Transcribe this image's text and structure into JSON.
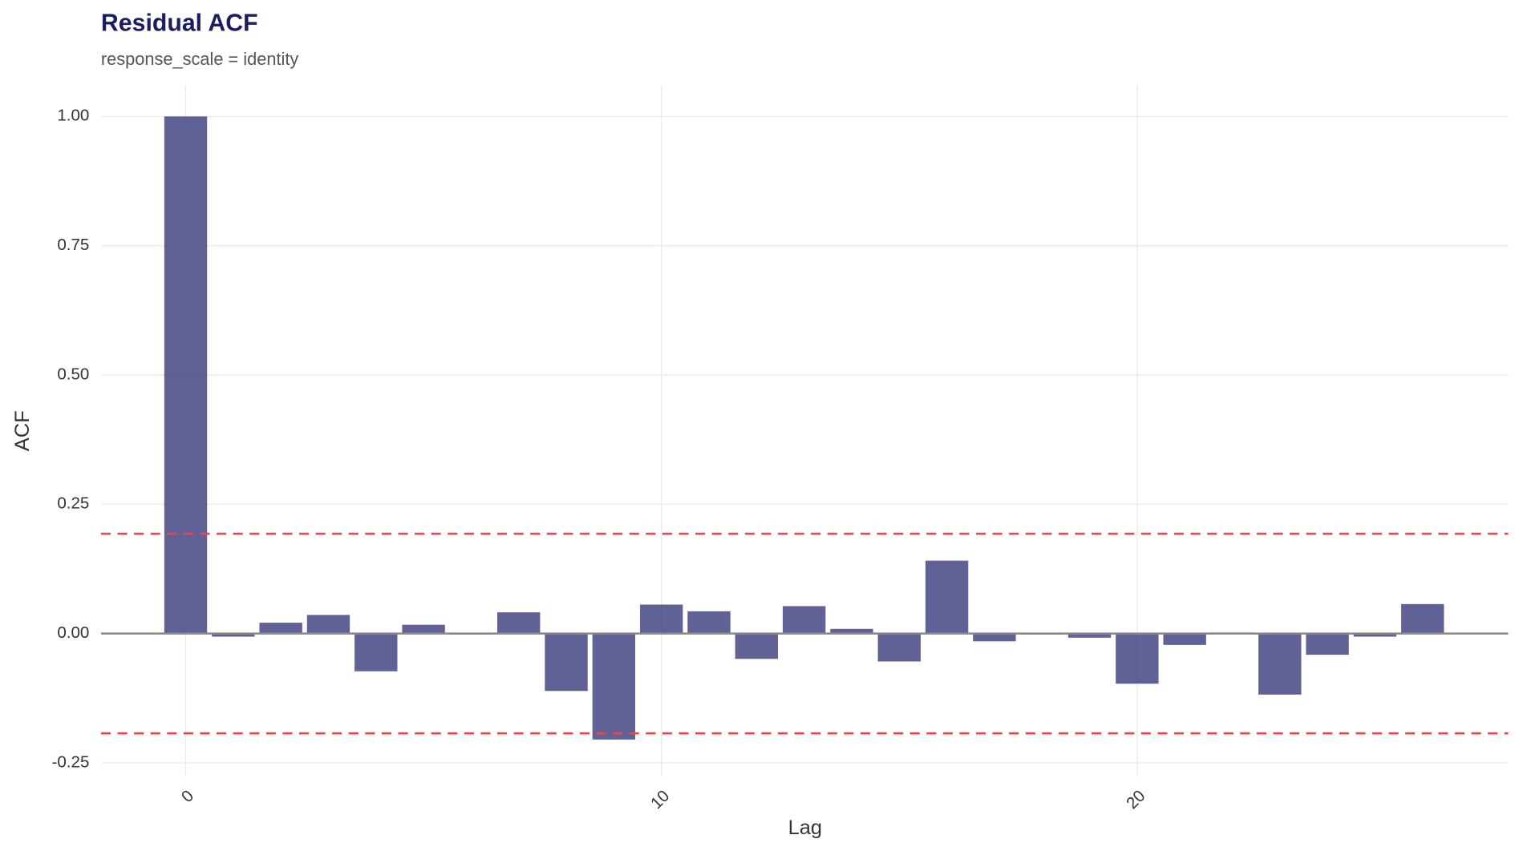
{
  "chart_data": {
    "type": "bar",
    "title": "Residual ACF",
    "subtitle": "response_scale = identity",
    "x_label": "Lag",
    "y_label": "ACF",
    "x": [
      0,
      1,
      2,
      3,
      4,
      5,
      6,
      7,
      8,
      9,
      10,
      11,
      12,
      13,
      14,
      15,
      16,
      17,
      18,
      19,
      20,
      21,
      22,
      23,
      24,
      25,
      26
    ],
    "values": [
      1.0,
      -0.006,
      0.021,
      0.036,
      -0.073,
      0.017,
      -0.002,
      0.041,
      -0.111,
      -0.205,
      0.056,
      0.043,
      -0.049,
      0.053,
      0.009,
      -0.054,
      0.141,
      -0.015,
      -0.002,
      -0.008,
      -0.097,
      -0.022,
      0.002,
      -0.118,
      -0.041,
      -0.006,
      0.057
    ],
    "color": "#4a4c86",
    "xlim": [
      -1.78,
      27.8
    ],
    "xticks": [
      0,
      10,
      20
    ],
    "ylim": [
      -0.276,
      1.06
    ],
    "yticks": [
      {
        "value": 1,
        "label": "1.00"
      },
      0.75,
      {
        "value": 0.5,
        "label": "0.50"
      },
      0.25,
      {
        "value": 0,
        "label": "0.00"
      },
      -0.25
    ],
    "ci_bounds": [
      0.193,
      -0.193
    ],
    "ci_color": "#e34a4a",
    "grid": true
  }
}
